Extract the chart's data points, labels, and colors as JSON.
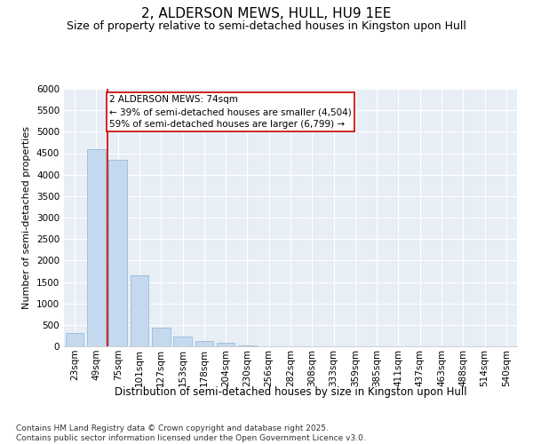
{
  "title": "2, ALDERSON MEWS, HULL, HU9 1EE",
  "subtitle": "Size of property relative to semi-detached houses in Kingston upon Hull",
  "xlabel": "Distribution of semi-detached houses by size in Kingston upon Hull",
  "ylabel": "Number of semi-detached properties",
  "categories": [
    "23sqm",
    "49sqm",
    "75sqm",
    "101sqm",
    "127sqm",
    "153sqm",
    "178sqm",
    "204sqm",
    "230sqm",
    "256sqm",
    "282sqm",
    "308sqm",
    "333sqm",
    "359sqm",
    "385sqm",
    "411sqm",
    "437sqm",
    "463sqm",
    "488sqm",
    "514sqm",
    "540sqm"
  ],
  "values": [
    320,
    4600,
    4350,
    1650,
    430,
    220,
    130,
    80,
    30,
    10,
    5,
    0,
    0,
    0,
    0,
    0,
    0,
    0,
    0,
    0,
    0
  ],
  "bar_color": "#c5d9ee",
  "bar_edge_color": "#8ab4d4",
  "vline_x_index": 1.5,
  "vline_color": "#cc0000",
  "property_label": "2 ALDERSON MEWS: 74sqm",
  "annotation_smaller": "← 39% of semi-detached houses are smaller (4,504)",
  "annotation_larger": "59% of semi-detached houses are larger (6,799) →",
  "box_color": "#cc0000",
  "ylim": [
    0,
    6000
  ],
  "yticks": [
    0,
    500,
    1000,
    1500,
    2000,
    2500,
    3000,
    3500,
    4000,
    4500,
    5000,
    5500,
    6000
  ],
  "background_color": "#e8eef5",
  "footer_line1": "Contains HM Land Registry data © Crown copyright and database right 2025.",
  "footer_line2": "Contains public sector information licensed under the Open Government Licence v3.0.",
  "title_fontsize": 11,
  "subtitle_fontsize": 9,
  "xlabel_fontsize": 8.5,
  "ylabel_fontsize": 8,
  "tick_fontsize": 7.5,
  "annotation_fontsize": 7.5,
  "footer_fontsize": 6.5
}
